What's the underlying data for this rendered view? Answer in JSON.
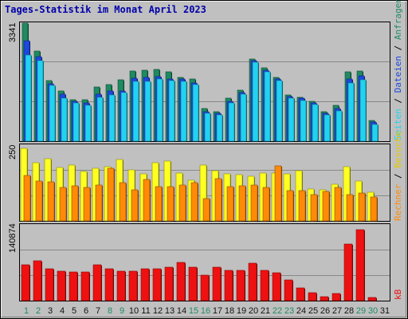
{
  "title": "Tages-Statistik im Monat April 2023",
  "colors": {
    "background": "#c0c0c0",
    "title": "#0000aa",
    "hits": "#208a62",
    "files": "#1e47dd",
    "pages": "#22d2f0",
    "visits": "#ffff22",
    "sites": "#ff8a08",
    "kbytes": "#ee1111",
    "weekend": "#208a62",
    "weekday": "#111111"
  },
  "legend": {
    "hits": "Anfragen",
    "files": "Dateien",
    "pages": "Seiten",
    "visits": "Besuche",
    "sites": "Rechner",
    "kbytes": "kB",
    "sep1": "/",
    "sep2": "/",
    "sep3": "/"
  },
  "chart_data": {
    "type": "bar",
    "categories": [
      "1",
      "2",
      "3",
      "4",
      "5",
      "6",
      "7",
      "8",
      "9",
      "10",
      "11",
      "12",
      "13",
      "14",
      "15",
      "16",
      "17",
      "18",
      "19",
      "20",
      "21",
      "22",
      "23",
      "24",
      "25",
      "26",
      "27",
      "28",
      "29",
      "30",
      "31"
    ],
    "weekend_days": [
      1,
      2,
      8,
      9,
      15,
      16,
      22,
      23,
      29,
      30
    ],
    "panels": [
      {
        "id": "top",
        "ymax_label": "3341",
        "ylim": [
          0,
          3341
        ],
        "series": [
          {
            "name": "Anfragen",
            "values": [
              3341,
              2541,
              1724,
              1429,
              1176,
              1176,
              1541,
              1611,
              1729,
              1985,
              2000,
              2028,
              1959,
              1800,
              1757,
              935,
              846,
              1223,
              1435,
              2326,
              2068,
              1811,
              1316,
              1252,
              1129,
              840,
              1019,
              1955,
              1992,
              587
            ]
          },
          {
            "name": "Dateien",
            "values": [
              2841,
              2391,
              1624,
              1329,
              1126,
              1076,
              1341,
              1411,
              1429,
              1785,
              1800,
              1828,
              1759,
              1750,
              1657,
              835,
              796,
              1123,
              1385,
              2276,
              2018,
              1761,
              1266,
              1212,
              1079,
              790,
              919,
              1755,
              1842,
              537
            ]
          },
          {
            "name": "Seiten",
            "values": [
              2441,
              2291,
              1574,
              1229,
              1076,
              1026,
              1241,
              1311,
              1379,
              1685,
              1700,
              1758,
              1709,
              1700,
              1607,
              785,
              746,
              1073,
              1335,
              2226,
              1968,
              1711,
              1216,
              1162,
              1029,
              740,
              869,
              1655,
              1742,
              467
            ]
          }
        ]
      },
      {
        "id": "middle",
        "ymax_label": "250",
        "ylim": [
          0,
          250
        ],
        "series": [
          {
            "name": "Besuche",
            "values": [
              240,
              192,
              206,
              177,
              183,
              164,
              174,
              178,
              203,
              169,
              155,
              192,
              197,
              157,
              134,
              183,
              166,
              154,
              153,
              147,
              158,
              157,
              156,
              165,
              105,
              102,
              120,
              178,
              131,
              95
            ]
          },
          {
            "name": "Rechner",
            "values": [
              150,
              132,
              130,
              110,
              117,
              111,
              118,
              173,
              126,
              103,
              138,
              114,
              113,
              118,
              127,
              73,
              140,
              113,
              116,
              118,
              110,
              182,
              99,
              99,
              88,
              98,
              111,
              87,
              92,
              79
            ]
          }
        ]
      },
      {
        "id": "bottom",
        "ymax_label": "140874",
        "ylim": [
          0,
          140874
        ],
        "series": [
          {
            "name": "kB",
            "values": [
              66000,
              74000,
              59000,
              55000,
              54000,
              53000,
              66000,
              60000,
              55000,
              55000,
              59000,
              59000,
              62000,
              71000,
              62000,
              47000,
              62000,
              56000,
              57000,
              70000,
              57000,
              52000,
              39000,
              24000,
              15000,
              8000,
              13000,
              106000,
              132000,
              6000
            ]
          }
        ]
      }
    ]
  }
}
